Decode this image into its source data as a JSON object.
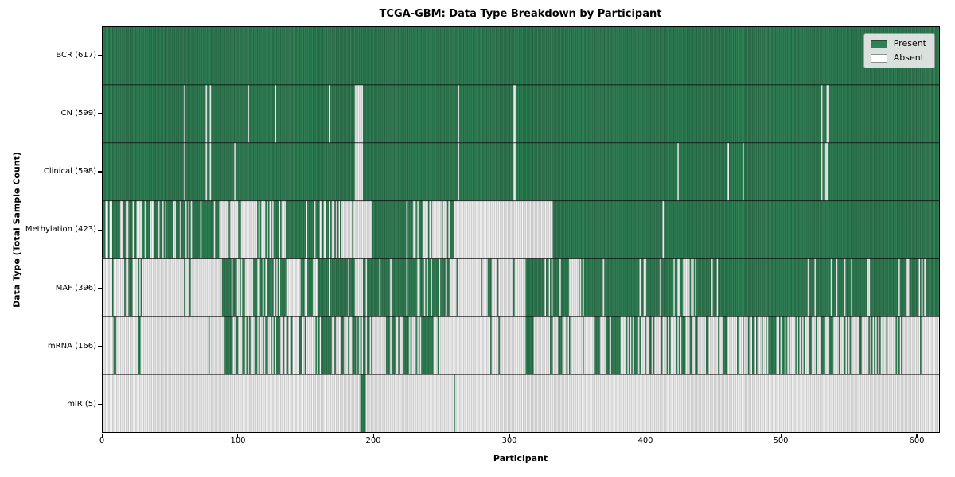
{
  "chart_data": {
    "type": "heatmap",
    "title": "TCGA-GBM: Data Type Breakdown by Participant",
    "xlabel": "Participant",
    "ylabel": "Data Type (Total Sample Count)",
    "n_participants": 617,
    "x_ticks": [
      0,
      100,
      200,
      300,
      400,
      500,
      600
    ],
    "legend_position": "upper right",
    "legend": [
      {
        "label": "Present",
        "color": "#2f8156",
        "edge": "#27492f"
      },
      {
        "label": "Absent",
        "color": "#ffffff",
        "edge": "#8f8f8f"
      }
    ],
    "colors": {
      "present_fill": "#2f8156",
      "present_edge": "#1a4f31",
      "absent_fill": "#f7f7f7",
      "absent_edge": "#a6a6a6",
      "row_separator": "#0d0d0d"
    },
    "segment_format": "[start_participant, end_participant, fraction_present]",
    "rows": [
      {
        "name": "BCR",
        "count": 617,
        "display": "BCR (617)",
        "pattern": {
          "type": "all"
        }
      },
      {
        "name": "CN",
        "count": 599,
        "display": "CN (599)",
        "pattern": {
          "type": "absent_list",
          "indices": [
            60,
            76,
            79,
            107,
            127,
            167,
            186,
            187,
            188,
            189,
            190,
            191,
            262,
            303,
            304,
            530,
            534,
            535
          ]
        }
      },
      {
        "name": "Clinical",
        "count": 598,
        "display": "Clinical (598)",
        "pattern": {
          "type": "absent_list",
          "indices": [
            60,
            76,
            79,
            97,
            186,
            187,
            188,
            189,
            190,
            191,
            262,
            303,
            304,
            424,
            461,
            472,
            530,
            533,
            534
          ]
        }
      },
      {
        "name": "Methylation",
        "count": 423,
        "display": "Methylation (423)",
        "pattern": {
          "type": "segments",
          "segments": [
            [
              0,
              56,
              0.72
            ],
            [
              56,
              86,
              0.85
            ],
            [
              86,
              112,
              0.18
            ],
            [
              112,
              137,
              0.36
            ],
            [
              137,
              155,
              0.85
            ],
            [
              155,
              176,
              0.4
            ],
            [
              176,
              184,
              0.05
            ],
            [
              184,
              185,
              1.0
            ],
            [
              185,
              199,
              0.05
            ],
            [
              199,
              224,
              1.0
            ],
            [
              224,
              232,
              0.6
            ],
            [
              232,
              256,
              0.25
            ],
            [
              256,
              259,
              1.0
            ],
            [
              259,
              332,
              0.0
            ],
            [
              332,
              413,
              1.0
            ],
            [
              413,
              414,
              0.0
            ],
            [
              414,
              617,
              1.0
            ]
          ]
        }
      },
      {
        "name": "MAF",
        "count": 396,
        "display": "MAF (396)",
        "pattern": {
          "type": "segments",
          "segments": [
            [
              0,
              18,
              0.18
            ],
            [
              18,
              31,
              0.3
            ],
            [
              31,
              88,
              0.06
            ],
            [
              88,
              102,
              0.8
            ],
            [
              102,
              121,
              0.5
            ],
            [
              121,
              137,
              0.65
            ],
            [
              137,
              147,
              0.25
            ],
            [
              147,
              155,
              0.8
            ],
            [
              155,
              159,
              0.1
            ],
            [
              159,
              176,
              0.75
            ],
            [
              176,
              186,
              0.7
            ],
            [
              186,
              192,
              0.05
            ],
            [
              192,
              224,
              0.9
            ],
            [
              224,
              256,
              0.85
            ],
            [
              256,
              284,
              0.08
            ],
            [
              284,
              287,
              1.0
            ],
            [
              287,
              312,
              0.08
            ],
            [
              312,
              345,
              0.9
            ],
            [
              345,
              353,
              0.25
            ],
            [
              353,
              421,
              0.9
            ],
            [
              421,
              439,
              0.45
            ],
            [
              439,
              617,
              0.91
            ]
          ]
        }
      },
      {
        "name": "mRNA",
        "count": 166,
        "display": "mRNA (166)",
        "pattern": {
          "type": "segments",
          "segments": [
            [
              0,
              26,
              0.06
            ],
            [
              26,
              28,
              1.0
            ],
            [
              28,
              90,
              0.02
            ],
            [
              90,
              96,
              0.7
            ],
            [
              96,
              110,
              0.4
            ],
            [
              110,
              129,
              0.35
            ],
            [
              129,
              162,
              0.3
            ],
            [
              162,
              172,
              0.45
            ],
            [
              172,
              177,
              0.1
            ],
            [
              177,
              199,
              0.52
            ],
            [
              199,
              209,
              0.08
            ],
            [
              209,
              217,
              0.85
            ],
            [
              217,
              224,
              0.15
            ],
            [
              224,
              244,
              0.55
            ],
            [
              244,
              260,
              0.12
            ],
            [
              260,
              312,
              0.05
            ],
            [
              312,
              363,
              0.28
            ],
            [
              363,
              377,
              0.6
            ],
            [
              377,
              479,
              0.27
            ],
            [
              479,
              537,
              0.5
            ],
            [
              537,
              594,
              0.3
            ],
            [
              594,
              617,
              0.08
            ]
          ]
        }
      },
      {
        "name": "miR",
        "count": 5,
        "display": "miR (5)",
        "pattern": {
          "type": "present_list",
          "indices": [
            190,
            191,
            192,
            193,
            259
          ]
        }
      }
    ]
  }
}
